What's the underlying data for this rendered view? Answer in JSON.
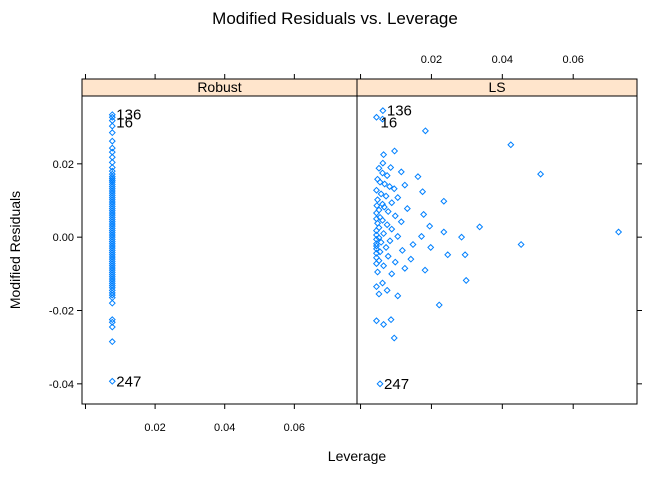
{
  "chart_data": {
    "type": "scatter",
    "title": "Modified Residuals vs. Leverage",
    "xlabel": "Leverage",
    "ylabel": "Modified Residuals",
    "xlim": [
      -0.001,
      0.078
    ],
    "ylim": [
      -0.0455,
      0.0385
    ],
    "x_ticks": [
      0.02,
      0.04,
      0.06
    ],
    "x_tick_labels": [
      "0.02",
      "0.04",
      "0.06"
    ],
    "y_ticks": [
      -0.04,
      -0.02,
      0.0,
      0.02
    ],
    "y_tick_labels": [
      "-0.04",
      "-0.02",
      "0.00",
      "0.02"
    ],
    "point_color": "#0080ff",
    "strip_color": "#ffe5cc",
    "grid": false,
    "panels": [
      {
        "name": "Robust",
        "points": [
          [
            0.0077,
            0.0334
          ],
          [
            0.0077,
            0.0327
          ],
          [
            0.0077,
            0.0318
          ],
          [
            0.0077,
            0.0303
          ],
          [
            0.0077,
            0.0285
          ],
          [
            0.0077,
            0.0262
          ],
          [
            0.0077,
            0.0243
          ],
          [
            0.0077,
            0.0232
          ],
          [
            0.0077,
            0.0218
          ],
          [
            0.0077,
            0.0204
          ],
          [
            0.0077,
            0.019
          ],
          [
            0.0077,
            0.018
          ],
          [
            0.0077,
            0.0172
          ],
          [
            0.0077,
            0.0165
          ],
          [
            0.0077,
            0.016
          ],
          [
            0.0077,
            0.0155
          ],
          [
            0.0077,
            0.015
          ],
          [
            0.0077,
            0.0144
          ],
          [
            0.0077,
            0.0138
          ],
          [
            0.0077,
            0.0132
          ],
          [
            0.0077,
            0.0126
          ],
          [
            0.0077,
            0.012
          ],
          [
            0.0077,
            0.0114
          ],
          [
            0.0077,
            0.0108
          ],
          [
            0.0077,
            0.0102
          ],
          [
            0.0077,
            0.0096
          ],
          [
            0.0077,
            0.009
          ],
          [
            0.0077,
            0.0084
          ],
          [
            0.0077,
            0.0078
          ],
          [
            0.0077,
            0.0072
          ],
          [
            0.0077,
            0.0066
          ],
          [
            0.0077,
            0.006
          ],
          [
            0.0077,
            0.0054
          ],
          [
            0.0077,
            0.0048
          ],
          [
            0.0077,
            0.0042
          ],
          [
            0.0077,
            0.0036
          ],
          [
            0.0077,
            0.003
          ],
          [
            0.0077,
            0.0024
          ],
          [
            0.0077,
            0.0018
          ],
          [
            0.0077,
            0.0012
          ],
          [
            0.0077,
            0.0006
          ],
          [
            0.0077,
            0.0
          ],
          [
            0.0077,
            -0.0006
          ],
          [
            0.0077,
            -0.0012
          ],
          [
            0.0077,
            -0.0018
          ],
          [
            0.0077,
            -0.0024
          ],
          [
            0.0077,
            -0.003
          ],
          [
            0.0077,
            -0.0036
          ],
          [
            0.0077,
            -0.0042
          ],
          [
            0.0077,
            -0.0048
          ],
          [
            0.0077,
            -0.0054
          ],
          [
            0.0077,
            -0.006
          ],
          [
            0.0077,
            -0.0066
          ],
          [
            0.0077,
            -0.0072
          ],
          [
            0.0077,
            -0.0078
          ],
          [
            0.0077,
            -0.0084
          ],
          [
            0.0077,
            -0.009
          ],
          [
            0.0077,
            -0.0096
          ],
          [
            0.0077,
            -0.0102
          ],
          [
            0.0077,
            -0.0108
          ],
          [
            0.0077,
            -0.0114
          ],
          [
            0.0077,
            -0.012
          ],
          [
            0.0077,
            -0.0126
          ],
          [
            0.0077,
            -0.0132
          ],
          [
            0.0077,
            -0.0138
          ],
          [
            0.0077,
            -0.0145
          ],
          [
            0.0077,
            -0.0152
          ],
          [
            0.0077,
            -0.0158
          ],
          [
            0.0077,
            -0.0165
          ],
          [
            0.0077,
            -0.018
          ],
          [
            0.0077,
            -0.0225
          ],
          [
            0.0077,
            -0.0232
          ],
          [
            0.0077,
            -0.0245
          ],
          [
            0.0077,
            -0.0285
          ],
          [
            0.0077,
            -0.0393
          ]
        ],
        "labels": [
          {
            "text": "136",
            "x": 0.0077,
            "y": 0.0334
          },
          {
            "text": "16",
            "x": 0.0077,
            "y": 0.0327
          },
          {
            "text": "247",
            "x": 0.0077,
            "y": -0.0393
          }
        ]
      },
      {
        "name": "LS",
        "points": [
          [
            0.0063,
            0.0345
          ],
          [
            0.0045,
            0.0327
          ],
          [
            0.0062,
            0.0322
          ],
          [
            0.0183,
            0.029
          ],
          [
            0.0424,
            0.0252
          ],
          [
            0.0096,
            0.0235
          ],
          [
            0.0065,
            0.0225
          ],
          [
            0.0063,
            0.0202
          ],
          [
            0.0085,
            0.019
          ],
          [
            0.0052,
            0.0188
          ],
          [
            0.0115,
            0.0178
          ],
          [
            0.0062,
            0.0175
          ],
          [
            0.0508,
            0.0172
          ],
          [
            0.0075,
            0.0168
          ],
          [
            0.0162,
            0.0165
          ],
          [
            0.0048,
            0.0158
          ],
          [
            0.0055,
            0.015
          ],
          [
            0.0068,
            0.0145
          ],
          [
            0.0125,
            0.0142
          ],
          [
            0.0082,
            0.0138
          ],
          [
            0.0095,
            0.0132
          ],
          [
            0.0045,
            0.0128
          ],
          [
            0.0175,
            0.0124
          ],
          [
            0.0058,
            0.0118
          ],
          [
            0.0072,
            0.0112
          ],
          [
            0.0105,
            0.0108
          ],
          [
            0.0048,
            0.0102
          ],
          [
            0.0235,
            0.0098
          ],
          [
            0.0088,
            0.0094
          ],
          [
            0.0062,
            0.009
          ],
          [
            0.0046,
            0.0086
          ],
          [
            0.0067,
            0.0082
          ],
          [
            0.0132,
            0.0078
          ],
          [
            0.0052,
            0.0074
          ],
          [
            0.0078,
            0.007
          ],
          [
            0.0045,
            0.0066
          ],
          [
            0.0178,
            0.0062
          ],
          [
            0.0098,
            0.0058
          ],
          [
            0.0055,
            0.0054
          ],
          [
            0.0045,
            0.005
          ],
          [
            0.0062,
            0.0046
          ],
          [
            0.0115,
            0.0042
          ],
          [
            0.0048,
            0.0038
          ],
          [
            0.0075,
            0.0034
          ],
          [
            0.0195,
            0.003
          ],
          [
            0.0336,
            0.0028
          ],
          [
            0.0052,
            0.0026
          ],
          [
            0.0088,
            0.0022
          ],
          [
            0.0045,
            0.0018
          ],
          [
            0.0235,
            0.0014
          ],
          [
            0.0728,
            0.0014
          ],
          [
            0.0065,
            0.001
          ],
          [
            0.0045,
            0.0006
          ],
          [
            0.0105,
            0.0002
          ],
          [
            0.0172,
            0.0002
          ],
          [
            0.0052,
            -0.0002
          ],
          [
            0.0285,
            0.0
          ],
          [
            0.0045,
            -0.0006
          ],
          [
            0.0083,
            -0.001
          ],
          [
            0.0058,
            -0.0014
          ],
          [
            0.0045,
            -0.0018
          ],
          [
            0.0453,
            -0.002
          ],
          [
            0.0148,
            -0.002
          ],
          [
            0.0045,
            -0.0024
          ],
          [
            0.0072,
            -0.0028
          ],
          [
            0.0198,
            -0.0028
          ],
          [
            0.0045,
            -0.0032
          ],
          [
            0.0118,
            -0.0036
          ],
          [
            0.0055,
            -0.004
          ],
          [
            0.0045,
            -0.0044
          ],
          [
            0.0246,
            -0.0048
          ],
          [
            0.0295,
            -0.0048
          ],
          [
            0.0078,
            -0.0052
          ],
          [
            0.0045,
            -0.0056
          ],
          [
            0.0142,
            -0.006
          ],
          [
            0.0052,
            -0.0064
          ],
          [
            0.0098,
            -0.0068
          ],
          [
            0.0045,
            -0.0072
          ],
          [
            0.0065,
            -0.0078
          ],
          [
            0.0125,
            -0.0085
          ],
          [
            0.0182,
            -0.009
          ],
          [
            0.0048,
            -0.0095
          ],
          [
            0.0088,
            -0.01
          ],
          [
            0.0298,
            -0.0118
          ],
          [
            0.0062,
            -0.0125
          ],
          [
            0.0045,
            -0.0135
          ],
          [
            0.0075,
            -0.0145
          ],
          [
            0.0052,
            -0.0155
          ],
          [
            0.0105,
            -0.016
          ],
          [
            0.0222,
            -0.0185
          ],
          [
            0.0045,
            -0.0228
          ],
          [
            0.0086,
            -0.0225
          ],
          [
            0.0065,
            -0.0238
          ],
          [
            0.0095,
            -0.0275
          ],
          [
            0.0055,
            -0.04
          ]
        ],
        "labels": [
          {
            "text": "136",
            "x": 0.0063,
            "y": 0.0345
          },
          {
            "text": "16",
            "x": 0.0045,
            "y": 0.0327
          },
          {
            "text": "247",
            "x": 0.0055,
            "y": -0.04
          }
        ]
      }
    ]
  }
}
